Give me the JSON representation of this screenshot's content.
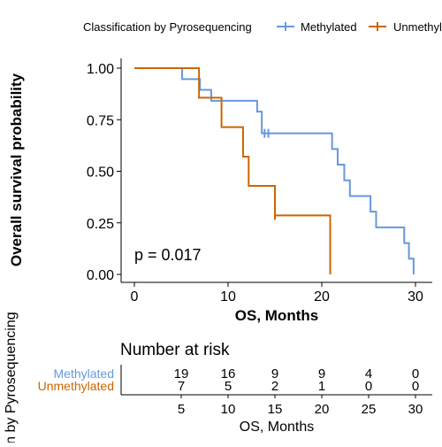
{
  "chart_data": [
    {
      "type": "line",
      "subtype": "kaplan-meier",
      "title": "",
      "xlabel": "OS, Months",
      "ylabel": "Overall survival probability",
      "xlim": [
        -1,
        31
      ],
      "ylim": [
        0,
        1
      ],
      "x_ticks": [
        "0",
        "10",
        "20",
        "30"
      ],
      "y_ticks": [
        "0.00",
        "0.25",
        "0.50",
        "0.75",
        "1.00"
      ],
      "grid": false,
      "legend": {
        "title": "Classification by Pyrosequencing",
        "placement": "top",
        "entries": [
          "Methylated",
          "Unmethylated"
        ]
      },
      "annotation": "p = 0.017",
      "series": [
        {
          "name": "Methylated",
          "color": "#6699dd",
          "steps": [
            [
              0,
              1.0
            ],
            [
              5.1,
              0.947
            ],
            [
              7.0,
              0.895
            ],
            [
              8.2,
              0.842
            ],
            [
              13.1,
              0.789
            ],
            [
              13.6,
              0.684
            ],
            [
              21.1,
              0.608
            ],
            [
              21.7,
              0.532
            ],
            [
              22.4,
              0.456
            ],
            [
              23.0,
              0.38
            ],
            [
              25.2,
              0.304
            ],
            [
              25.8,
              0.228
            ],
            [
              28.8,
              0.152
            ],
            [
              29.3,
              0.076
            ],
            [
              29.8,
              0.0
            ]
          ],
          "end_x": 29.8,
          "censored": [
            [
              13.9,
              0.684
            ],
            [
              14.3,
              0.684
            ]
          ]
        },
        {
          "name": "Unmethylated",
          "color": "#cc6600",
          "steps": [
            [
              0,
              1.0
            ],
            [
              6.9,
              0.857
            ],
            [
              9.3,
              0.714
            ],
            [
              11.6,
              0.571
            ],
            [
              12.2,
              0.429
            ],
            [
              15.0,
              0.286
            ],
            [
              20.9,
              0.0
            ]
          ],
          "end_x": 20.9,
          "censored": [
            [
              15.0,
              0.286
            ]
          ]
        }
      ]
    },
    {
      "type": "table",
      "title": "Number at risk",
      "xlabel": "OS, Months",
      "ylabel": "ation by Pyrosequencing",
      "x_ticks": [
        "5",
        "10",
        "15",
        "20",
        "25",
        "30"
      ],
      "rows": [
        {
          "name": "Methylated",
          "color": "#6699dd",
          "values": [
            "19",
            "16",
            "9",
            "9",
            "4",
            "0"
          ]
        },
        {
          "name": "Unmethylated",
          "color": "#cc6600",
          "values": [
            "7",
            "5",
            "2",
            "1",
            "0",
            "0"
          ]
        }
      ]
    }
  ]
}
